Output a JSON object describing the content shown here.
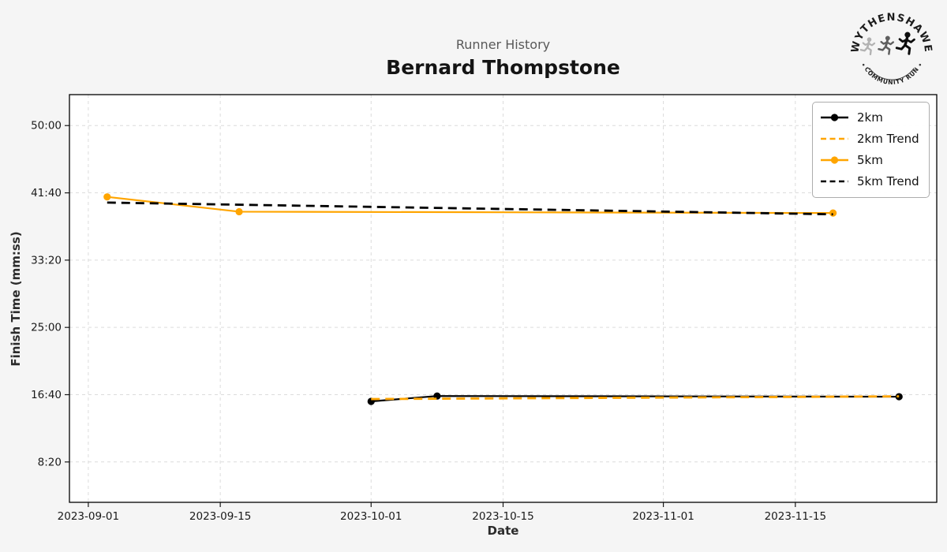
{
  "logo": {
    "top_text": "WYTHENSHAWE",
    "bottom_text": "COMMUNITY RUN"
  },
  "chart_data": {
    "type": "line",
    "suptitle": "Runner History",
    "title": "Bernard Thompstone",
    "xlabel": "Date",
    "ylabel": "Finish Time (mm:ss)",
    "x_ticks": [
      "2023-09-01",
      "2023-09-15",
      "2023-10-01",
      "2023-10-15",
      "2023-11-01",
      "2023-11-15"
    ],
    "y_ticks": [
      "8:20",
      "16:40",
      "25:00",
      "33:20",
      "41:40",
      "50:00"
    ],
    "xlim": [
      "2023-08-30",
      "2023-11-30"
    ],
    "ylim_seconds": [
      200,
      3230
    ],
    "grid": true,
    "legend_position": "upper right",
    "colors": {
      "black": "#000000",
      "orange": "#FFA500",
      "grid": "#dcdcdc",
      "plot_bg": "#ffffff",
      "fig_bg": "#f5f5f5"
    },
    "series": [
      {
        "name": "2km",
        "color": "#000000",
        "style": "solid",
        "marker": true,
        "points": [
          {
            "date": "2023-10-01",
            "time": "15:50"
          },
          {
            "date": "2023-10-08",
            "time": "16:30"
          },
          {
            "date": "2023-11-26",
            "time": "16:25"
          }
        ]
      },
      {
        "name": "2km Trend",
        "color": "#FFA500",
        "style": "dashed",
        "marker": false,
        "trend_of": "2km"
      },
      {
        "name": "5km",
        "color": "#FFA500",
        "style": "solid",
        "marker": true,
        "points": [
          {
            "date": "2023-09-03",
            "time": "41:10"
          },
          {
            "date": "2023-09-17",
            "time": "39:20"
          },
          {
            "date": "2023-11-19",
            "time": "39:10"
          }
        ]
      },
      {
        "name": "5km Trend",
        "color": "#000000",
        "style": "dashed",
        "marker": false,
        "trend_of": "5km"
      }
    ]
  }
}
